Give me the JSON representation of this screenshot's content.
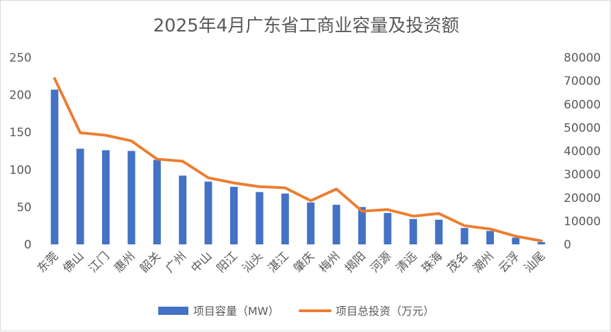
{
  "chart_data": {
    "type": "bar",
    "title": "2025年4月广东省工商业容量及投资额",
    "categories": [
      "东莞",
      "佛山",
      "江门",
      "惠州",
      "韶关",
      "广州",
      "中山",
      "阳江",
      "汕头",
      "湛江",
      "肇庆",
      "梅州",
      "揭阳",
      "河源",
      "清远",
      "珠海",
      "茂名",
      "潮州",
      "云浮",
      "汕尾"
    ],
    "series": [
      {
        "name": "项目容量（MW）",
        "kind": "bar",
        "axis": "left",
        "color": "#4472C4",
        "values": [
          207,
          128,
          126,
          125,
          113,
          92,
          84,
          77,
          70,
          68,
          56,
          53,
          50,
          42,
          34,
          33,
          22,
          18,
          9,
          3
        ]
      },
      {
        "name": "项目总投资（万元）",
        "kind": "line",
        "axis": "right",
        "color": "#ED7D31",
        "values": [
          71000,
          47800,
          46700,
          44300,
          36500,
          35600,
          28500,
          26300,
          24700,
          24200,
          18700,
          23700,
          14200,
          14900,
          12100,
          13200,
          8000,
          6600,
          3500,
          1500
        ]
      }
    ],
    "ylim_left": [
      0,
      250
    ],
    "yticks_left": [
      0,
      50,
      100,
      150,
      200,
      250
    ],
    "ylim_right": [
      0,
      80000
    ],
    "yticks_right": [
      0,
      10000,
      20000,
      30000,
      40000,
      50000,
      60000,
      70000,
      80000
    ],
    "grid": false,
    "legend_position": "bottom",
    "xlabel": "",
    "ylabel": ""
  }
}
